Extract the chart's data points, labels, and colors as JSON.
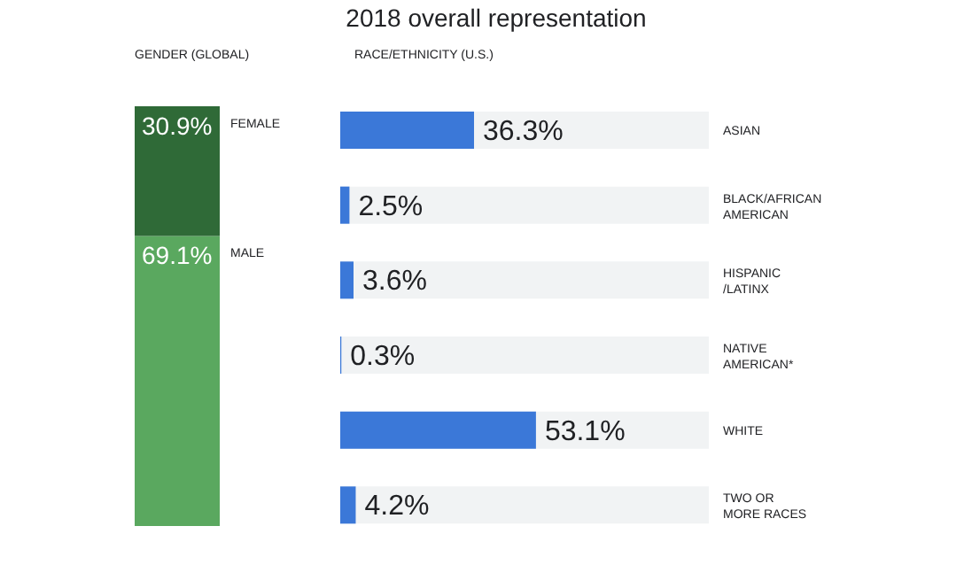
{
  "chart_data": [
    {
      "type": "bar",
      "subtitle": "GENDER (GLOBAL)",
      "categories": [
        null
      ],
      "stacked": true,
      "series": [
        {
          "name": "MALE",
          "color": "#5aa85f",
          "values": [
            69.1
          ],
          "value_labels": [
            "69.1%"
          ]
        },
        {
          "name": "FEMALE",
          "color": "#2f6a37",
          "values": [
            30.9
          ],
          "value_labels": [
            "30.9%"
          ]
        }
      ]
    },
    {
      "type": "bar",
      "orientation": "horizontal",
      "title": "2018 overall representation",
      "subtitle": "RACE/ETHNICITY  (U.S.)",
      "categories": [
        "ASIAN",
        "BLACK/AFRICAN\nAMERICAN",
        "HISPANIC\n/LATINX",
        "NATIVE\nAMERICAN*",
        "WHITE",
        "TWO OR\nMORE RACES"
      ],
      "values": [
        36.3,
        2.5,
        3.6,
        0.3,
        53.1,
        4.2
      ],
      "color": "#3b78d8",
      "value_labels": [
        "36.3%",
        "2.5%",
        "3.6%",
        "0.3%",
        "53.1%",
        "4.2%"
      ]
    }
  ]
}
